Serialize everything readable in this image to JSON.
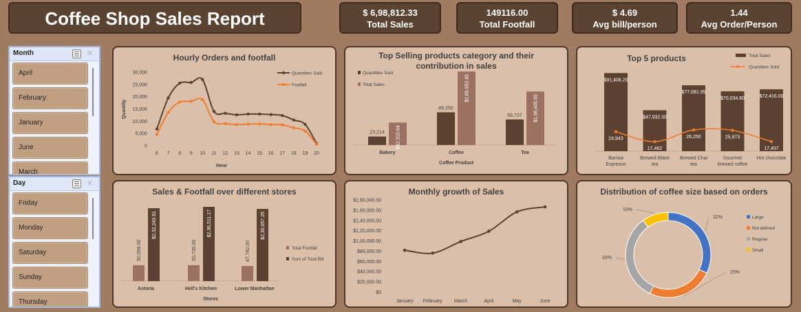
{
  "header": {
    "title": "Coffee Shop Sales Report",
    "kpis": [
      {
        "value": "$  6,98,812.33",
        "label": "Total Sales"
      },
      {
        "value": "149116.00",
        "label": "Total Footfall"
      },
      {
        "value": "$  4.69",
        "label": "Avg bill/person"
      },
      {
        "value": "1.44",
        "label": "Avg Order/Person"
      }
    ]
  },
  "slicers": {
    "month": {
      "title": "Month",
      "items": [
        "April",
        "February",
        "January",
        "June",
        "March"
      ]
    },
    "day": {
      "title": "Day",
      "items": [
        "Friday",
        "Monday",
        "Saturday",
        "Sunday",
        "Thursday"
      ]
    }
  },
  "colors": {
    "dark": "#5b4230",
    "mid": "#9b7262",
    "orange": "#ed7d31",
    "blue": "#4472c4",
    "grey": "#a5a5a5",
    "yellow": "#ffc000",
    "card": "#dbbfa9"
  },
  "chart_data": [
    {
      "id": "hourly",
      "type": "line",
      "title": "Hourly Orders and footfall",
      "xlabel": "Hour",
      "ylabel": "Quantity",
      "x": [
        6,
        7,
        8,
        9,
        10,
        11,
        12,
        13,
        14,
        15,
        16,
        17,
        18,
        19,
        20
      ],
      "ylim": [
        0,
        30000
      ],
      "yticks": [
        "0",
        "5,000",
        "10,000",
        "15,000",
        "20,000",
        "25,000",
        "30,000"
      ],
      "series": [
        {
          "name": "Quantities Sold",
          "values": [
            6800,
            19500,
            25500,
            25800,
            27000,
            14000,
            13200,
            12600,
            12900,
            12900,
            12700,
            12300,
            10500,
            8700,
            900
          ]
        },
        {
          "name": "Footfall",
          "values": [
            4600,
            13600,
            17800,
            18100,
            18800,
            9800,
            9000,
            8600,
            8800,
            8900,
            8600,
            8500,
            7300,
            6000,
            600
          ]
        }
      ],
      "legend": "right"
    },
    {
      "id": "category",
      "type": "bar",
      "title": "Top Selling products category and their contribution in sales",
      "xlabel": "Coffee Product",
      "categories": [
        "Bakery",
        "Coffee",
        "Tea"
      ],
      "series": [
        {
          "name": "Quantities Sold",
          "values": [
            23214,
            89250,
            69737
          ],
          "labels": [
            "23,214",
            "89,250",
            "69,737"
          ]
        },
        {
          "name": "Total Sales",
          "values": [
            82315.64,
            269952.45,
            196405.95
          ],
          "labels": [
            "$82,315.64",
            "$2,69,952.45",
            "$1,96,405.95"
          ]
        }
      ],
      "legend": "top-left"
    },
    {
      "id": "top5",
      "type": "bar",
      "title": "Top 5 products",
      "categories": [
        "Barista Espresso",
        "Brewed Black tea",
        "Brewed Chai tea",
        "Gourmet brewed coffee",
        "Hot chocolate"
      ],
      "series": [
        {
          "name": "Total Sales",
          "values": [
            91406.2,
            47932.0,
            77081.95,
            70034.6,
            72416.0
          ],
          "labels": [
            "$91,406.20",
            "$47,932.00",
            "$77,081.95",
            "$70,034.60",
            "$72,416.00"
          ]
        },
        {
          "name": "Quantities Sold",
          "values": [
            24943,
            17462,
            26250,
            25973,
            17457
          ],
          "labels": [
            "24,943",
            "17,462",
            "26,250",
            "25,973",
            "17,457"
          ]
        }
      ],
      "legend": "top-right"
    },
    {
      "id": "stores",
      "type": "bar",
      "title": "Sales & Footfall over different stores",
      "xlabel": "Stores",
      "categories": [
        "Astoria",
        "Hell's Kitchen",
        "Lower Manhattan"
      ],
      "series": [
        {
          "name": "Total Footfall",
          "values": [
            50599,
            50735,
            47782
          ],
          "labels": [
            "50,599.00",
            "50,735.00",
            "47,782.00"
          ]
        },
        {
          "name": "Sum of Total Bill",
          "values": [
            232243.91,
            236511.17,
            230057.25
          ],
          "labels": [
            "$2,32,243.91",
            "$2,36,511.17",
            "$2,30,057.25"
          ]
        }
      ],
      "legend": "right"
    },
    {
      "id": "monthly",
      "type": "line",
      "title": "Monthly growth of Sales",
      "categories": [
        "January",
        "February",
        "March",
        "April",
        "May",
        "June"
      ],
      "values": [
        81700,
        76100,
        98800,
        118900,
        156700,
        166500
      ],
      "ylim": [
        0,
        180000
      ],
      "yticks": [
        "$0",
        "$20,000.00",
        "$40,000.00",
        "$60,000.00",
        "$80,000.00",
        "$1,00,000.00",
        "$1,20,000.00",
        "$1,40,000.00",
        "$1,60,000.00",
        "$1,80,000.00"
      ]
    },
    {
      "id": "sizes",
      "type": "pie",
      "title": "Distribution of coffee size based on orders",
      "categories": [
        "Large",
        "Not defined",
        "Regular",
        "Small"
      ],
      "values": [
        32,
        25,
        33,
        10
      ],
      "labels": [
        "32%",
        "25%",
        "33%",
        "10%"
      ],
      "legend": "right"
    }
  ]
}
